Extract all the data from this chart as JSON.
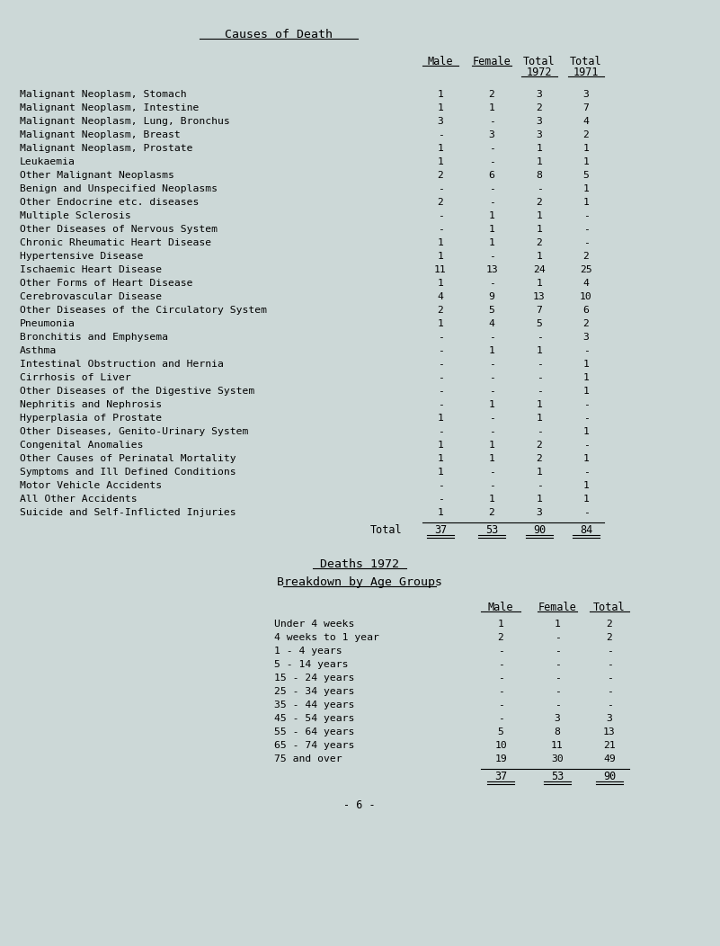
{
  "bg_color": "#ccd8d7",
  "title": "Causes of Death",
  "causes": [
    [
      "Malignant Neoplasm, Stomach",
      "1",
      "2",
      "3",
      "3"
    ],
    [
      "Malignant Neoplasm, Intestine",
      "1",
      "1",
      "2",
      "7"
    ],
    [
      "Malignant Neoplasm, Lung, Bronchus",
      "3",
      "-",
      "3",
      "4"
    ],
    [
      "Malignant Neoplasm, Breast",
      "-",
      "3",
      "3",
      "2"
    ],
    [
      "Malignant Neoplasm, Prostate",
      "1",
      "-",
      "1",
      "1"
    ],
    [
      "Leukaemia",
      "1",
      "-",
      "1",
      "1"
    ],
    [
      "Other Malignant Neoplasms",
      "2",
      "6",
      "8",
      "5"
    ],
    [
      "Benign and Unspecified Neoplasms",
      "-",
      "-",
      "-",
      "1"
    ],
    [
      "Other Endocrine etc. diseases",
      "2",
      "-",
      "2",
      "1"
    ],
    [
      "Multiple Sclerosis",
      "-",
      "1",
      "1",
      "-"
    ],
    [
      "Other Diseases of Nervous System",
      "-",
      "1",
      "1",
      "-"
    ],
    [
      "Chronic Rheumatic Heart Disease",
      "1",
      "1",
      "2",
      "-"
    ],
    [
      "Hypertensive Disease",
      "1",
      "-",
      "1",
      "2"
    ],
    [
      "Ischaemic Heart Disease",
      "11",
      "13",
      "24",
      "25"
    ],
    [
      "Other Forms of Heart Disease",
      "1",
      "-",
      "1",
      "4"
    ],
    [
      "Cerebrovascular Disease",
      "4",
      "9",
      "13",
      "10"
    ],
    [
      "Other Diseases of the Circulatory System",
      "2",
      "5",
      "7",
      "6"
    ],
    [
      "Pneumonia",
      "1",
      "4",
      "5",
      "2"
    ],
    [
      "Bronchitis and Emphysema",
      "-",
      "-",
      "-",
      "3"
    ],
    [
      "Asthma",
      "-",
      "1",
      "1",
      "-"
    ],
    [
      "Intestinal Obstruction and Hernia",
      "-",
      "-",
      "-",
      "1"
    ],
    [
      "Cirrhosis of Liver",
      "-",
      "-",
      "-",
      "1"
    ],
    [
      "Other Diseases of the Digestive System",
      "-",
      "-",
      "-",
      "1"
    ],
    [
      "Nephritis and Nephrosis",
      "-",
      "1",
      "1",
      "-"
    ],
    [
      "Hyperplasia of Prostate",
      "1",
      "-",
      "1",
      "-"
    ],
    [
      "Other Diseases, Genito-Urinary System",
      "-",
      "-",
      "-",
      "1"
    ],
    [
      "Congenital Anomalies",
      "1",
      "1",
      "2",
      "-"
    ],
    [
      "Other Causes of Perinatal Mortality",
      "1",
      "1",
      "2",
      "1"
    ],
    [
      "Symptoms and Ill Defined Conditions",
      "1",
      "-",
      "1",
      "-"
    ],
    [
      "Motor Vehicle Accidents",
      "-",
      "-",
      "-",
      "1"
    ],
    [
      "All Other Accidents",
      "-",
      "1",
      "1",
      "1"
    ],
    [
      "Suicide and Self-Inflicted Injuries",
      "1",
      "2",
      "3",
      "-"
    ]
  ],
  "total_row": [
    "Total",
    "37",
    "53",
    "90",
    "84"
  ],
  "section2_title": "Deaths 1972",
  "section2_subtitle": "Breakdown by Age Groups",
  "age_groups": [
    [
      "Under 4 weeks",
      "1",
      "1",
      "2"
    ],
    [
      "4 weeks to 1 year",
      "2",
      "-",
      "2"
    ],
    [
      "1 - 4 years",
      "-",
      "-",
      "-"
    ],
    [
      "5 - 14 years",
      "-",
      "-",
      "-"
    ],
    [
      "15 - 24 years",
      "-",
      "-",
      "-"
    ],
    [
      "25 - 34 years",
      "-",
      "-",
      "-"
    ],
    [
      "35 - 44 years",
      "-",
      "-",
      "-"
    ],
    [
      "45 - 54 years",
      "-",
      "3",
      "3"
    ],
    [
      "55 - 64 years",
      "5",
      "8",
      "13"
    ],
    [
      "65 - 74 years",
      "10",
      "11",
      "21"
    ],
    [
      "75 and over",
      "19",
      "30",
      "49"
    ]
  ],
  "age_total_row": [
    "37",
    "53",
    "90"
  ],
  "footer": "- 6 -"
}
